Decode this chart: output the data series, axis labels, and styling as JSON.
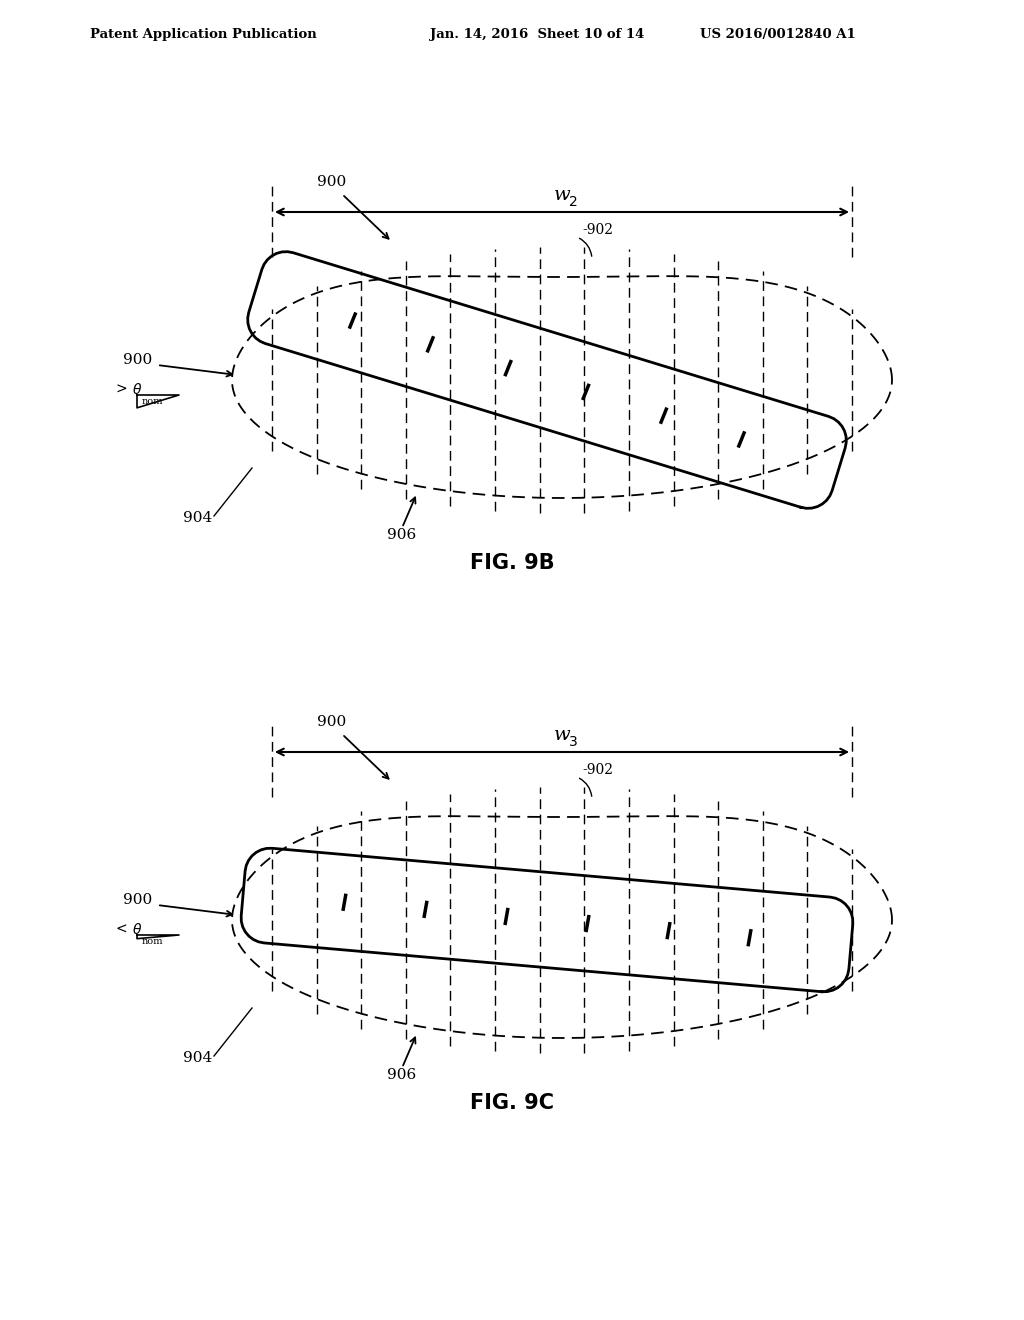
{
  "bg_color": "#ffffff",
  "line_color": "#000000",
  "header_left": "Patent Application Publication",
  "header_mid": "Jan. 14, 2016  Sheet 10 of 14",
  "header_right": "US 2016/0012840 A1",
  "fig9b_label": "FIG. 9B",
  "fig9c_label": "FIG. 9C",
  "w2_label": "w",
  "w2_sub": "2",
  "w3_label": "w",
  "w3_sub": "3",
  "label_900": "900",
  "label_902": "902",
  "label_904": "904",
  "label_906": "906",
  "angle_9b": ">",
  "angle_9c": "<",
  "theta_nom": "nom"
}
